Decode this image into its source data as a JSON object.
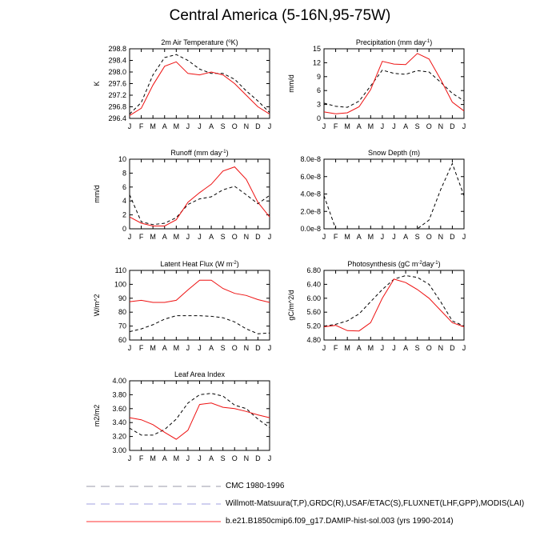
{
  "figure_title": "Central America (5-16N,95-75W)",
  "months": [
    "J",
    "F",
    "M",
    "A",
    "M",
    "J",
    "J",
    "A",
    "S",
    "O",
    "N",
    "D",
    "J"
  ],
  "chart_data": [
    {
      "type": "line",
      "title": "2m Air Temperature (°K)",
      "ylabel": "K",
      "ylim": [
        296.4,
        298.8
      ],
      "yticks": [
        "296.4",
        "296.8",
        "297.2",
        "297.6",
        "298.0",
        "298.4",
        "298.8"
      ],
      "series": [
        {
          "name": "CMC 1980-1996",
          "values": [
            296.55,
            296.95,
            297.9,
            298.5,
            298.6,
            298.4,
            298.1,
            297.95,
            297.95,
            297.75,
            297.35,
            297.0,
            296.6
          ]
        },
        {
          "name": "b.e21.B1850cmip6.f09_g17.DAMIP-hist-sol.003 (yrs 1990-2014)",
          "values": [
            296.5,
            296.75,
            297.55,
            298.2,
            298.35,
            297.95,
            297.9,
            298.0,
            297.9,
            297.6,
            297.2,
            296.8,
            296.55
          ]
        }
      ]
    },
    {
      "type": "line",
      "title": "Precipitation (mm day-1)",
      "ylabel": "mm/d",
      "ylim": [
        0,
        15
      ],
      "yticks": [
        "0",
        "3",
        "6",
        "9",
        "12",
        "15"
      ],
      "series": [
        {
          "name": "Willmott-Matsuura(T,P),GRDC(R),USAF/ETAC(S),FLUXNET(LHF,GPP),MODIS(LAI)",
          "values": [
            3.3,
            2.6,
            2.4,
            3.7,
            7.0,
            10.4,
            9.7,
            9.5,
            10.3,
            10.0,
            7.8,
            5.4,
            3.8
          ]
        },
        {
          "name": "b.e21.B1850cmip6.f09_g17.DAMIP-hist-sol.003 (yrs 1990-2014)",
          "values": [
            1.4,
            1.0,
            1.2,
            2.5,
            6.2,
            12.3,
            11.7,
            11.6,
            14.0,
            12.8,
            8.4,
            3.5,
            1.6
          ]
        }
      ]
    },
    {
      "type": "line",
      "title": "Runoff (mm day-1)",
      "ylabel": "mm/d",
      "ylim": [
        0,
        10
      ],
      "yticks": [
        "0",
        "2",
        "4",
        "6",
        "8",
        "10"
      ],
      "series": [
        {
          "name": "Willmott-Matsuura(T,P),GRDC(R),USAF/ETAC(S),FLUXNET(LHF,GPP),MODIS(LAI)",
          "values": [
            4.9,
            1.0,
            0.6,
            0.8,
            1.6,
            3.5,
            4.3,
            4.6,
            5.6,
            6.1,
            4.9,
            3.6,
            4.8
          ]
        },
        {
          "name": "b.e21.B1850cmip6.f09_g17.DAMIP-hist-sol.003 (yrs 1990-2014)",
          "values": [
            1.7,
            0.8,
            0.4,
            0.4,
            1.3,
            3.8,
            5.2,
            6.4,
            8.3,
            8.9,
            7.1,
            3.8,
            1.7
          ]
        }
      ]
    },
    {
      "type": "line",
      "title": "Snow Depth (m)",
      "ylabel": "",
      "ylim": [
        0,
        8e-08
      ],
      "yticks": [
        "0.0e-8",
        "2.0e-8",
        "4.0e-8",
        "6.0e-8",
        "8.0e-8"
      ],
      "series": [
        {
          "name": "Willmott-Matsuura(T,P),GRDC(R),USAF/ETAC(S),FLUXNET(LHF,GPP),MODIS(LAI)",
          "values": [
            3.8e-08,
            0,
            0,
            0,
            0,
            0,
            0,
            0,
            0,
            1e-08,
            4.5e-08,
            7.5e-08,
            3.8e-08
          ]
        }
      ]
    },
    {
      "type": "line",
      "title": "Latent Heat Flux (W m-2)",
      "ylabel": "W/m^2",
      "ylim": [
        60,
        110
      ],
      "yticks": [
        "60",
        "70",
        "80",
        "90",
        "100",
        "110"
      ],
      "series": [
        {
          "name": "Willmott-Matsuura(T,P),GRDC(R),USAF/ETAC(S),FLUXNET(LHF,GPP),MODIS(LAI)",
          "values": [
            66,
            68,
            71,
            75,
            77.5,
            77.5,
            77.5,
            77,
            76,
            73,
            68,
            64.5,
            65
          ]
        },
        {
          "name": "b.e21.B1850cmip6.f09_g17.DAMIP-hist-sol.003 (yrs 1990-2014)",
          "values": [
            87.5,
            88.5,
            87,
            87,
            88.5,
            96,
            103,
            103,
            97,
            93.5,
            92,
            89,
            87
          ]
        }
      ]
    },
    {
      "type": "line",
      "title": "Photosynthesis (gC m-2day-1)",
      "ylabel": "gC/m^2/d",
      "ylim": [
        4.8,
        6.8
      ],
      "yticks": [
        "4.80",
        "5.20",
        "5.60",
        "6.00",
        "6.40",
        "6.80"
      ],
      "series": [
        {
          "name": "Willmott-Matsuura(T,P),GRDC(R),USAF/ETAC(S),FLUXNET(LHF,GPP),MODIS(LAI)",
          "values": [
            5.2,
            5.25,
            5.35,
            5.55,
            5.9,
            6.25,
            6.55,
            6.65,
            6.6,
            6.4,
            5.9,
            5.35,
            5.2
          ]
        },
        {
          "name": "b.e21.B1850cmip6.f09_g17.DAMIP-hist-sol.003 (yrs 1990-2014)",
          "values": [
            5.18,
            5.22,
            5.07,
            5.06,
            5.3,
            6.0,
            6.55,
            6.45,
            6.25,
            6.0,
            5.65,
            5.3,
            5.18
          ]
        }
      ]
    },
    {
      "type": "line",
      "title": "Leaf Area Index",
      "ylabel": "m2/m2",
      "ylim": [
        3.0,
        4.0
      ],
      "yticks": [
        "3.00",
        "3.20",
        "3.40",
        "3.60",
        "3.80",
        "4.00"
      ],
      "series": [
        {
          "name": "Willmott-Matsuura(T,P),GRDC(R),USAF/ETAC(S),FLUXNET(LHF,GPP),MODIS(LAI)",
          "values": [
            3.32,
            3.22,
            3.22,
            3.3,
            3.45,
            3.68,
            3.8,
            3.82,
            3.78,
            3.65,
            3.6,
            3.45,
            3.33
          ]
        },
        {
          "name": "b.e21.B1850cmip6.f09_g17.DAMIP-hist-sol.003 (yrs 1990-2014)",
          "values": [
            3.47,
            3.44,
            3.37,
            3.26,
            3.16,
            3.29,
            3.66,
            3.68,
            3.62,
            3.6,
            3.56,
            3.51,
            3.47
          ]
        }
      ]
    }
  ],
  "legend": [
    {
      "label": "CMC 1980-1996",
      "style": "dashed",
      "color": "#9a9aaa"
    },
    {
      "label": "Willmott-Matsuura(T,P),GRDC(R),USAF/ETAC(S),FLUXNET(LHF,GPP),MODIS(LAI)",
      "style": "dashed",
      "color": "#a0a0e0"
    },
    {
      "label": "b.e21.B1850cmip6.f09_g17.DAMIP-hist-sol.003 (yrs 1990-2014)",
      "style": "solid",
      "color": "#ff3333"
    }
  ],
  "colors": {
    "model_line": "#ee1111",
    "obs_line": "#000000"
  }
}
